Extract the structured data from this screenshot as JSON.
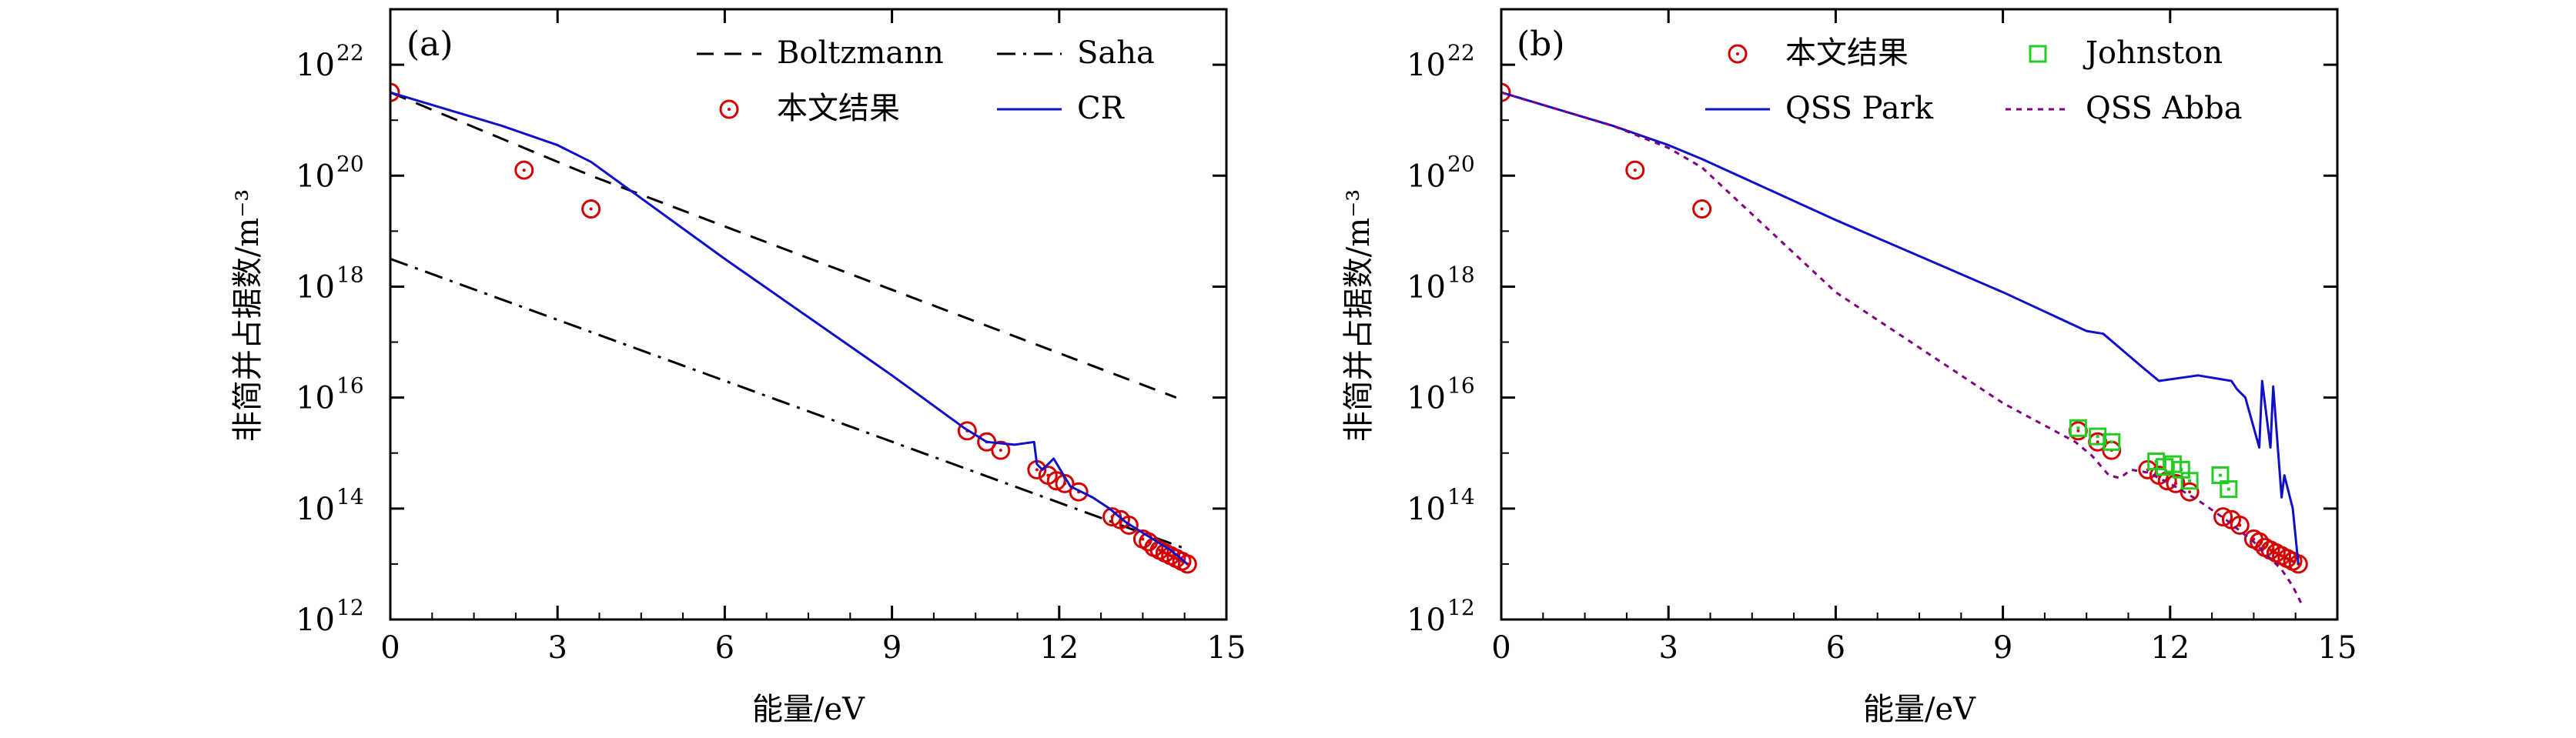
{
  "chart_data": [
    {
      "type": "scatter",
      "panel_label": "(a)",
      "xlabel": "能量/eV",
      "ylabel": "非简并占据数/m⁻³",
      "xlim": [
        0,
        15
      ],
      "ylim_log10": [
        12,
        23
      ],
      "x_ticks": [
        "0",
        "3",
        "6",
        "9",
        "12",
        "15"
      ],
      "y_tick_mantissa": "10",
      "y_tick_exponents": [
        "12",
        "14",
        "16",
        "18",
        "20",
        "22"
      ],
      "legend": [
        "Boltzmann",
        "Saha",
        "本文结果",
        "CR"
      ],
      "legend_position": "top-right",
      "series": [
        {
          "name": "Boltzmann",
          "style": "dashed",
          "color": "#000000",
          "x": [
            0,
            3.6,
            14.1
          ],
          "log10_y": [
            21.5,
            20.0,
            16.0
          ]
        },
        {
          "name": "Saha",
          "style": "dashdot",
          "color": "#000000",
          "x": [
            0,
            14.2
          ],
          "log10_y": [
            18.5,
            13.3
          ]
        },
        {
          "name": "本文结果",
          "style": "markers-circle",
          "color": "#d40000",
          "x": [
            0,
            2.4,
            3.6,
            10.35,
            10.7,
            10.95,
            11.6,
            11.8,
            11.95,
            12.1,
            12.35,
            12.95,
            13.1,
            13.25,
            13.5,
            13.6,
            13.7,
            13.8,
            13.9,
            14.0,
            14.1,
            14.2,
            14.3
          ],
          "log10_y": [
            21.5,
            20.1,
            19.4,
            15.4,
            15.2,
            15.05,
            14.7,
            14.6,
            14.5,
            14.45,
            14.3,
            13.85,
            13.8,
            13.7,
            13.45,
            13.4,
            13.3,
            13.25,
            13.2,
            13.15,
            13.1,
            13.05,
            13.0
          ]
        },
        {
          "name": "CR",
          "style": "solid",
          "color": "#1010c8",
          "x": [
            0,
            1.0,
            2.0,
            3.0,
            3.6,
            6.0,
            9.0,
            10.3,
            10.7,
            11.2,
            11.55,
            11.6,
            11.7,
            11.9,
            12.2,
            12.6,
            12.9,
            13.2,
            13.6,
            14.0,
            14.3
          ],
          "log10_y": [
            21.5,
            21.2,
            20.9,
            20.55,
            20.25,
            18.5,
            16.4,
            15.45,
            15.2,
            15.15,
            15.2,
            14.8,
            14.7,
            14.9,
            14.4,
            14.2,
            14.0,
            13.75,
            13.5,
            13.25,
            13.0
          ]
        }
      ]
    },
    {
      "type": "scatter",
      "panel_label": "(b)",
      "xlabel": "能量/eV",
      "ylabel": "非简并占据数/m⁻³",
      "xlim": [
        0,
        15
      ],
      "ylim_log10": [
        12,
        23
      ],
      "x_ticks": [
        "0",
        "3",
        "6",
        "9",
        "12",
        "15"
      ],
      "y_tick_mantissa": "10",
      "y_tick_exponents": [
        "12",
        "14",
        "16",
        "18",
        "20",
        "22"
      ],
      "legend": [
        "本文结果",
        "Johnston",
        "QSS Park",
        "QSS Abba"
      ],
      "legend_position": "top-right",
      "series": [
        {
          "name": "本文结果",
          "style": "markers-circle",
          "color": "#d40000",
          "x": [
            0,
            2.4,
            3.6,
            10.35,
            10.7,
            10.95,
            11.6,
            11.8,
            11.95,
            12.1,
            12.35,
            12.95,
            13.1,
            13.25,
            13.5,
            13.6,
            13.7,
            13.8,
            13.9,
            14.0,
            14.1,
            14.2,
            14.3
          ],
          "log10_y": [
            21.5,
            20.1,
            19.4,
            15.4,
            15.2,
            15.05,
            14.7,
            14.6,
            14.5,
            14.45,
            14.3,
            13.85,
            13.8,
            13.7,
            13.45,
            13.4,
            13.3,
            13.25,
            13.2,
            13.15,
            13.1,
            13.05,
            13.0
          ]
        },
        {
          "name": "Johnston",
          "style": "markers-square",
          "color": "#22cc22",
          "x": [
            10.35,
            10.7,
            10.95,
            11.75,
            11.9,
            12.05,
            12.2,
            12.35,
            12.9,
            13.05
          ],
          "log10_y": [
            15.45,
            15.3,
            15.2,
            14.85,
            14.75,
            14.8,
            14.7,
            14.5,
            14.6,
            14.35
          ]
        },
        {
          "name": "QSS Park",
          "style": "solid",
          "color": "#1010c8",
          "x": [
            0,
            1.0,
            2.0,
            3.0,
            3.6,
            6.0,
            9.0,
            10.5,
            10.8,
            11.5,
            11.8,
            12.5,
            13.1,
            13.2,
            13.35,
            13.6,
            13.65,
            13.8,
            13.85,
            14.0,
            14.05,
            14.2,
            14.3
          ],
          "log10_y": [
            21.5,
            21.2,
            20.9,
            20.55,
            20.3,
            19.2,
            17.9,
            17.2,
            17.15,
            16.55,
            16.3,
            16.4,
            16.3,
            16.15,
            16.0,
            15.1,
            16.3,
            15.1,
            16.2,
            14.2,
            14.6,
            14.0,
            13.0
          ]
        },
        {
          "name": "QSS Abba",
          "style": "dotted",
          "color": "#800080",
          "x": [
            0,
            1.0,
            2.0,
            3.0,
            3.6,
            6.0,
            9.0,
            10.3,
            10.6,
            10.9,
            11.1,
            11.3,
            11.6,
            12.0,
            12.5,
            13.0,
            13.5,
            14.0,
            14.2,
            14.35
          ],
          "log10_y": [
            21.5,
            21.2,
            20.9,
            20.5,
            20.15,
            17.9,
            15.9,
            15.2,
            14.95,
            14.6,
            14.55,
            14.7,
            14.65,
            14.45,
            14.15,
            13.8,
            13.4,
            12.9,
            12.6,
            12.3
          ]
        }
      ]
    }
  ]
}
